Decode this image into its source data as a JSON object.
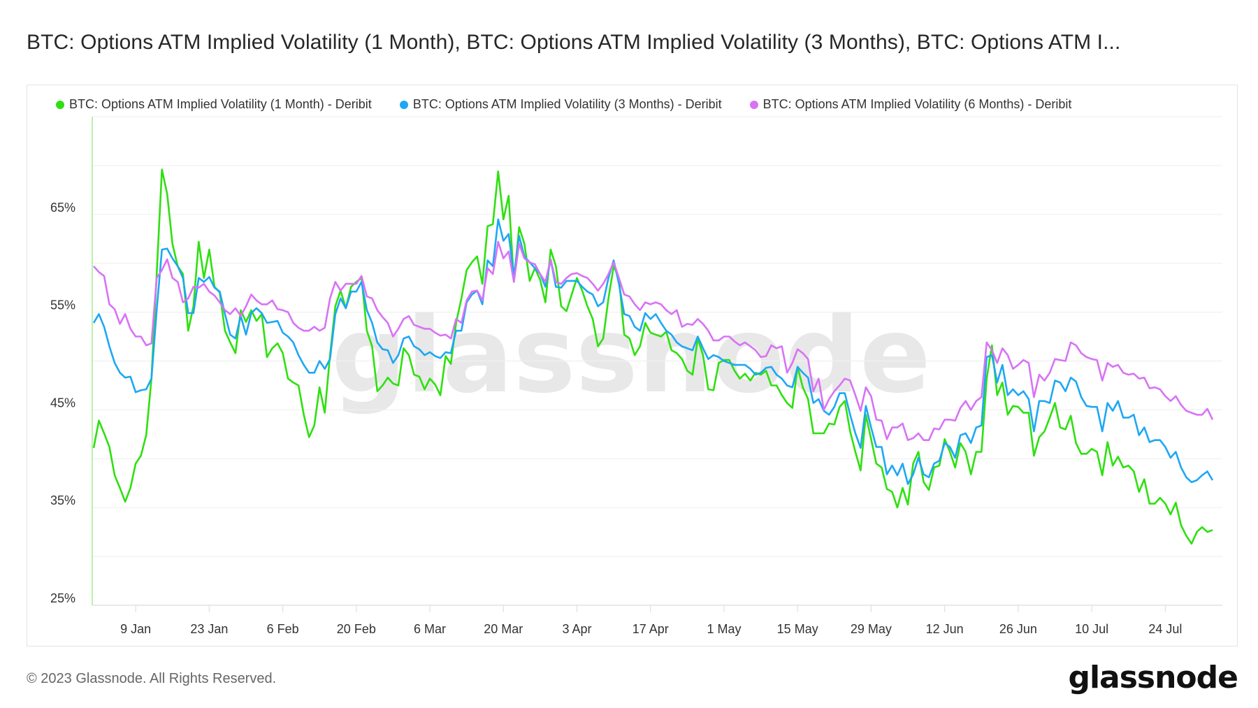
{
  "title": "BTC: Options ATM Implied Volatility (1 Month), BTC: Options ATM Implied Volatility (3 Months), BTC: Options ATM I...",
  "footer": {
    "copyright": "© 2023 Glassnode. All Rights Reserved.",
    "logo": "glassnode"
  },
  "watermark": "glassnode",
  "chart_data": {
    "type": "line",
    "title": "BTC: Options ATM Implied Volatility (1 Month), BTC: Options ATM Implied Volatility (3 Months), BTC: Options ATM I...",
    "xlabel": "",
    "ylabel": "",
    "xlim": [
      "2023-01-01",
      "2023-08-02"
    ],
    "x_frequency": "daily",
    "ylim": [
      25,
      75
    ],
    "grid": true,
    "legend_position": "top-left",
    "yticks": [
      {
        "label": "25%",
        "value": 25
      },
      {
        "label": "35%",
        "value": 35
      },
      {
        "label": "45%",
        "value": 45
      },
      {
        "label": "55%",
        "value": 55
      },
      {
        "label": "65%",
        "value": 65
      }
    ],
    "ygrid_values": [
      25,
      30,
      35,
      40,
      45,
      50,
      55,
      60,
      65,
      70,
      75
    ],
    "xticks": [
      {
        "label": "9 Jan",
        "date": "2023-01-09"
      },
      {
        "label": "23 Jan",
        "date": "2023-01-23"
      },
      {
        "label": "6 Feb",
        "date": "2023-02-06"
      },
      {
        "label": "20 Feb",
        "date": "2023-02-20"
      },
      {
        "label": "6 Mar",
        "date": "2023-03-06"
      },
      {
        "label": "20 Mar",
        "date": "2023-03-20"
      },
      {
        "label": "3 Apr",
        "date": "2023-04-03"
      },
      {
        "label": "17 Apr",
        "date": "2023-04-17"
      },
      {
        "label": "1 May",
        "date": "2023-05-01"
      },
      {
        "label": "15 May",
        "date": "2023-05-15"
      },
      {
        "label": "29 May",
        "date": "2023-05-29"
      },
      {
        "label": "12 Jun",
        "date": "2023-06-12"
      },
      {
        "label": "26 Jun",
        "date": "2023-06-26"
      },
      {
        "label": "10 Jul",
        "date": "2023-07-10"
      },
      {
        "label": "24 Jul",
        "date": "2023-07-24"
      }
    ],
    "series": [
      {
        "name": "BTC: Options ATM Implied Volatility (1 Month) - Deribit",
        "color": "#2ee00f",
        "values": [
          41.1,
          43.9,
          42.6,
          41.2,
          38.3,
          37.0,
          35.6,
          37.0,
          39.5,
          40.3,
          42.4,
          48.2,
          58.9,
          69.6,
          67.1,
          62.0,
          59.7,
          58.9,
          53.1,
          55.6,
          62.2,
          58.5,
          61.4,
          57.6,
          57.0,
          53.1,
          51.9,
          50.8,
          55.2,
          54.0,
          55.2,
          54.1,
          54.8,
          50.4,
          51.3,
          51.8,
          50.8,
          48.2,
          47.8,
          47.5,
          44.5,
          42.2,
          43.4,
          47.3,
          44.7,
          50.6,
          55.6,
          57.2,
          55.4,
          57.6,
          58.1,
          58.5,
          53.1,
          51.5,
          46.9,
          47.5,
          48.3,
          47.7,
          47.5,
          51.3,
          50.6,
          48.6,
          48.4,
          47.1,
          48.2,
          47.6,
          46.5,
          50.5,
          49.7,
          53.9,
          56.4,
          59.3,
          60.1,
          60.7,
          57.9,
          63.8,
          64.0,
          69.4,
          64.5,
          66.9,
          58.1,
          63.7,
          62.0,
          58.2,
          59.5,
          58.3,
          56.0,
          61.4,
          59.7,
          55.6,
          55.1,
          56.8,
          58.5,
          57.2,
          55.6,
          54.3,
          51.5,
          52.3,
          56.4,
          59.7,
          58.5,
          52.7,
          52.3,
          50.6,
          51.5,
          53.9,
          52.9,
          52.7,
          52.5,
          53.0,
          51.1,
          50.8,
          50.2,
          49.0,
          48.6,
          52.3,
          50.6,
          47.1,
          47.0,
          49.8,
          50.1,
          50.1,
          49.0,
          48.2,
          48.7,
          48.0,
          48.8,
          48.6,
          49.0,
          47.5,
          47.5,
          46.5,
          45.7,
          45.2,
          49.4,
          47.3,
          46.1,
          42.6,
          42.6,
          42.6,
          43.6,
          43.5,
          45.3,
          45.9,
          42.8,
          40.7,
          38.8,
          44.5,
          42.0,
          39.5,
          39.1,
          36.9,
          36.6,
          35.0,
          37.0,
          35.3,
          39.5,
          40.7,
          37.6,
          36.8,
          39.1,
          39.3,
          42.0,
          40.7,
          39.1,
          41.6,
          40.7,
          38.4,
          40.7,
          40.7,
          48.2,
          51.6,
          46.5,
          47.8,
          44.5,
          45.4,
          45.3,
          44.7,
          44.7,
          40.3,
          42.2,
          42.8,
          44.2,
          45.7,
          43.2,
          43.0,
          44.4,
          41.6,
          40.5,
          40.5,
          41.0,
          40.7,
          38.3,
          41.7,
          39.3,
          40.2,
          39.1,
          39.3,
          38.7,
          36.6,
          37.9,
          35.4,
          35.4,
          36.0,
          35.4,
          34.3,
          35.5,
          33.2,
          32.1,
          31.3,
          32.5,
          33.0,
          32.5,
          32.7
        ]
      },
      {
        "name": "BTC: Options ATM Implied Volatility (3 Months) - Deribit",
        "color": "#1ea7f5",
        "values": [
          53.9,
          54.8,
          53.5,
          51.5,
          49.8,
          48.8,
          48.3,
          48.4,
          46.8,
          47.0,
          47.1,
          48.2,
          55.2,
          61.4,
          61.5,
          60.5,
          59.7,
          58.5,
          54.9,
          54.9,
          58.5,
          58.1,
          58.6,
          57.5,
          57.1,
          54.8,
          52.7,
          52.3,
          54.6,
          52.7,
          54.9,
          55.4,
          54.9,
          53.9,
          54.0,
          54.1,
          52.9,
          52.5,
          51.9,
          50.6,
          49.6,
          48.8,
          48.8,
          50.0,
          49.2,
          50.2,
          54.8,
          56.4,
          55.4,
          57.1,
          57.1,
          58.1,
          55.2,
          53.9,
          51.9,
          51.2,
          51.1,
          49.8,
          50.6,
          52.3,
          52.5,
          51.5,
          51.2,
          50.6,
          50.9,
          50.5,
          50.3,
          50.9,
          50.8,
          53.1,
          53.1,
          56.0,
          56.8,
          57.2,
          55.8,
          60.3,
          59.7,
          64.5,
          62.3,
          63.0,
          58.7,
          62.8,
          60.7,
          60.1,
          59.5,
          58.9,
          57.6,
          60.4,
          57.6,
          57.5,
          58.2,
          58.2,
          58.2,
          57.6,
          57.1,
          56.8,
          55.6,
          56.0,
          58.5,
          60.3,
          57.9,
          54.8,
          54.6,
          53.5,
          53.1,
          54.9,
          54.3,
          54.8,
          53.9,
          53.1,
          52.7,
          51.9,
          51.5,
          51.3,
          51.1,
          52.5,
          51.3,
          50.2,
          50.6,
          50.4,
          50.0,
          49.8,
          49.6,
          49.6,
          49.6,
          49.2,
          48.6,
          48.8,
          49.3,
          49.4,
          48.6,
          48.2,
          47.5,
          47.3,
          49.4,
          48.8,
          48.3,
          45.7,
          46.1,
          44.9,
          44.5,
          45.3,
          46.7,
          46.7,
          44.5,
          42.6,
          41.1,
          45.4,
          43.2,
          41.2,
          41.2,
          38.4,
          39.3,
          38.3,
          39.5,
          37.4,
          38.4,
          40.1,
          38.4,
          38.1,
          39.5,
          39.8,
          41.6,
          41.2,
          40.1,
          42.4,
          42.6,
          41.6,
          43.2,
          43.4,
          50.4,
          50.6,
          47.8,
          49.6,
          46.5,
          47.1,
          46.5,
          46.9,
          46.1,
          42.8,
          45.9,
          45.9,
          45.7,
          48.0,
          47.8,
          46.9,
          48.3,
          47.9,
          46.3,
          45.4,
          45.3,
          45.3,
          42.8,
          45.7,
          44.9,
          45.9,
          44.2,
          44.2,
          44.5,
          42.4,
          43.2,
          41.7,
          41.9,
          41.9,
          41.2,
          40.1,
          40.7,
          39.1,
          38.1,
          37.6,
          37.8,
          38.3,
          38.7,
          37.8
        ]
      },
      {
        "name": "BTC: Options ATM Implied Volatility (6 Months) - Deribit",
        "color": "#d873f5",
        "values": [
          59.7,
          59.1,
          58.7,
          55.8,
          55.3,
          53.8,
          54.8,
          53.3,
          52.5,
          52.5,
          51.6,
          51.8,
          58.5,
          59.3,
          60.4,
          58.5,
          58.1,
          56.0,
          56.4,
          57.6,
          57.5,
          57.9,
          57.1,
          56.7,
          56.0,
          55.2,
          54.8,
          55.4,
          54.6,
          55.6,
          56.8,
          56.2,
          55.8,
          55.8,
          56.2,
          55.3,
          55.2,
          55.0,
          53.9,
          53.4,
          53.1,
          53.1,
          53.5,
          53.1,
          53.4,
          56.4,
          58.1,
          57.2,
          57.9,
          57.9,
          57.9,
          58.7,
          56.6,
          56.4,
          55.2,
          54.5,
          53.9,
          52.5,
          53.3,
          54.3,
          54.6,
          53.7,
          53.5,
          53.3,
          53.3,
          52.9,
          52.6,
          52.7,
          52.3,
          54.3,
          53.9,
          56.2,
          57.1,
          57.2,
          56.2,
          59.5,
          58.9,
          62.2,
          60.5,
          61.2,
          58.1,
          62.0,
          60.5,
          60.1,
          59.9,
          58.9,
          58.1,
          60.4,
          58.1,
          57.9,
          58.5,
          58.9,
          59.0,
          58.7,
          58.5,
          57.9,
          57.2,
          57.9,
          58.9,
          60.1,
          58.5,
          56.8,
          56.6,
          55.8,
          55.2,
          56.0,
          55.8,
          56.0,
          55.8,
          55.2,
          54.8,
          55.2,
          53.5,
          53.8,
          53.7,
          54.3,
          53.8,
          53.1,
          52.1,
          52.1,
          52.5,
          52.5,
          52.0,
          51.6,
          51.9,
          51.5,
          51.1,
          50.4,
          50.5,
          51.6,
          51.3,
          51.5,
          48.8,
          49.8,
          51.2,
          50.8,
          50.2,
          46.9,
          48.2,
          45.0,
          46.1,
          46.9,
          47.5,
          48.2,
          48.0,
          46.5,
          44.9,
          47.3,
          46.4,
          44.0,
          43.9,
          42.0,
          43.2,
          43.2,
          43.6,
          41.9,
          42.1,
          42.6,
          41.9,
          41.9,
          43.1,
          43.0,
          44.0,
          44.0,
          43.9,
          45.2,
          45.9,
          45.0,
          45.9,
          46.3,
          51.9,
          51.1,
          49.8,
          51.3,
          50.6,
          49.2,
          49.6,
          50.1,
          49.8,
          46.3,
          48.6,
          48.0,
          48.8,
          50.2,
          50.1,
          50.0,
          51.9,
          51.6,
          50.8,
          50.4,
          50.2,
          50.1,
          48.0,
          49.8,
          49.4,
          49.6,
          48.8,
          48.6,
          48.7,
          48.2,
          48.3,
          47.2,
          47.3,
          47.1,
          46.4,
          45.9,
          46.4,
          45.5,
          44.9,
          44.7,
          44.5,
          44.5,
          45.1,
          44.0
        ]
      }
    ]
  }
}
